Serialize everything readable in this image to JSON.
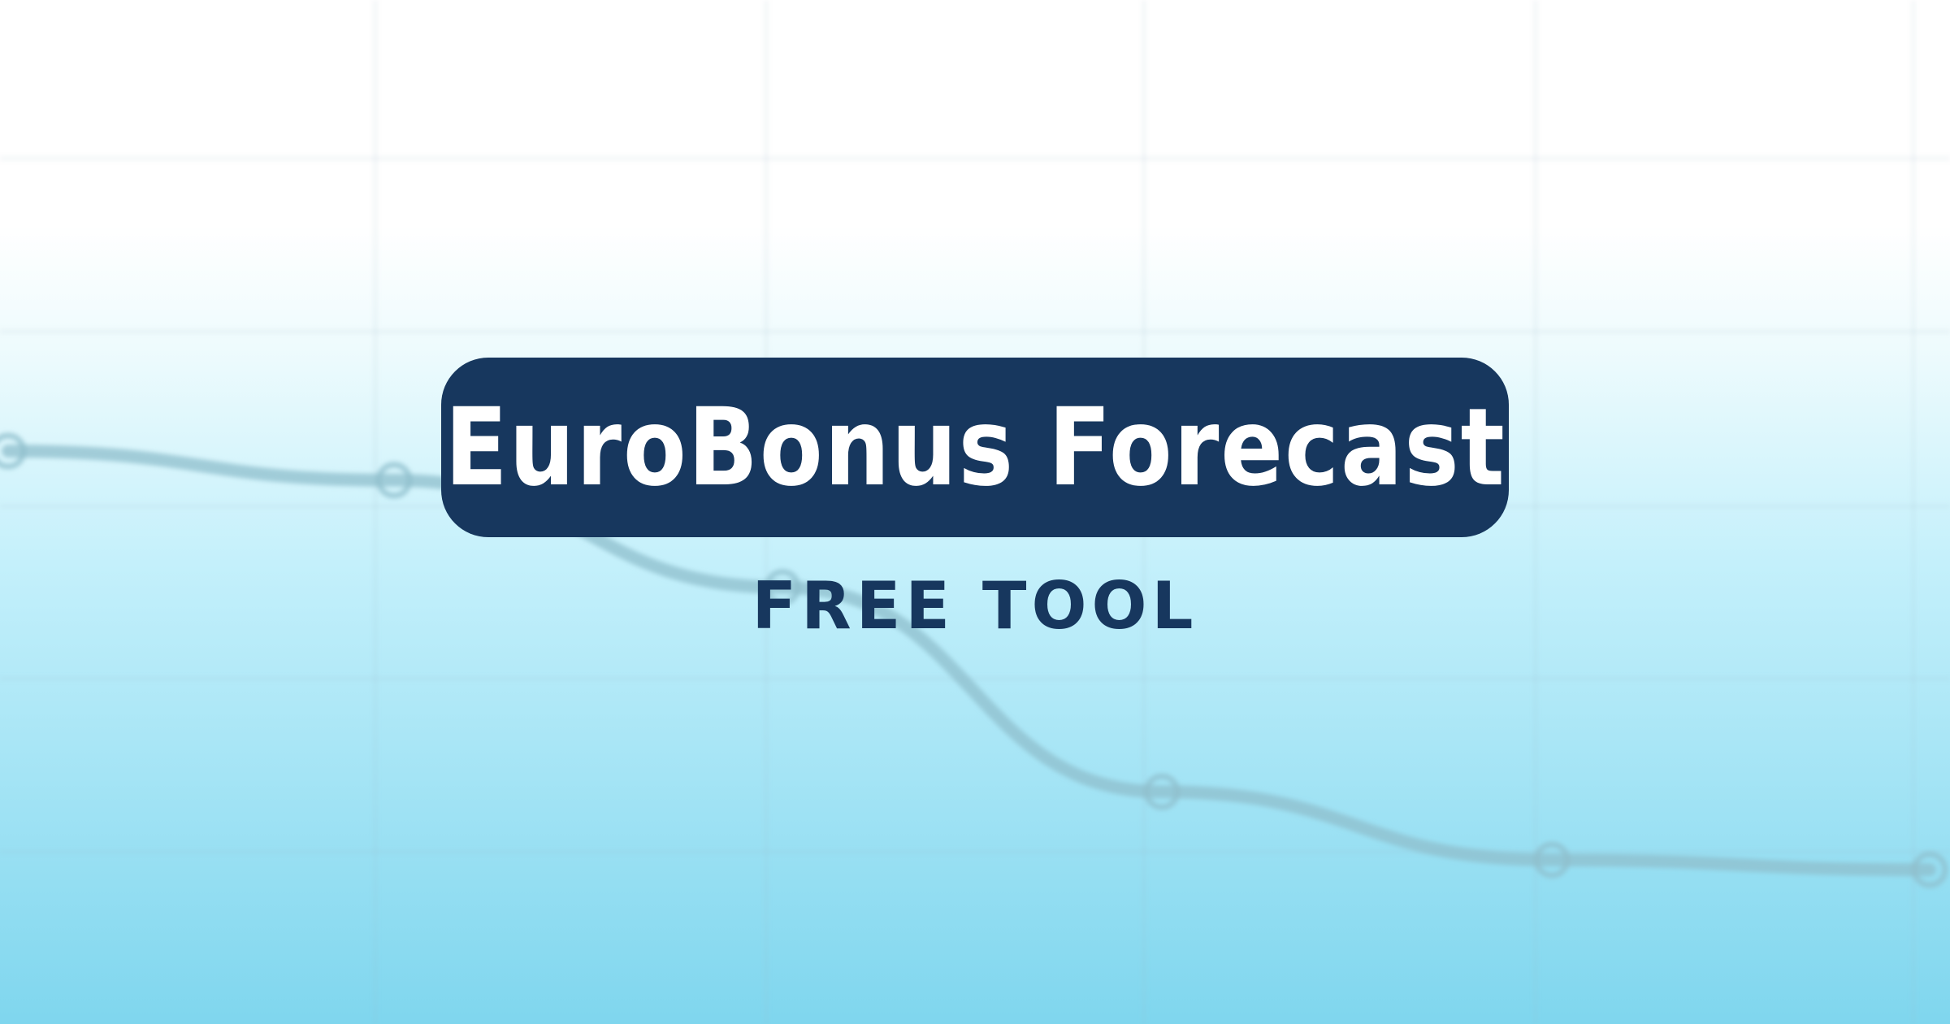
{
  "banner": {
    "title": "EuroBonus Forecast",
    "subtitle": "FREE TOOL"
  },
  "colors": {
    "brand_navy": "#17375e",
    "gradient_top": "#ffffff",
    "gradient_bottom": "#7fd6ee",
    "line": "#8fbfcc"
  },
  "decorative_trend": {
    "points": [
      0.0,
      0.06,
      0.28,
      0.7,
      0.84,
      0.86
    ]
  }
}
